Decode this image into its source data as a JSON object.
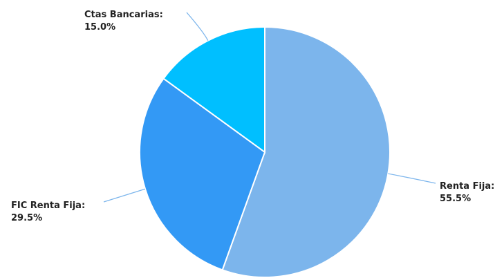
{
  "chart_data": {
    "type": "pie",
    "start_angle_deg": 0,
    "direction": "clockwise",
    "slices": [
      {
        "name": "Renta Fija",
        "label": "Renta Fija:",
        "value_label": "55.5%",
        "value": 55.5,
        "color": "#7cb5ec"
      },
      {
        "name": "FIC Renta Fija",
        "label": "FIC Renta Fija:",
        "value_label": "29.5%",
        "value": 29.5,
        "color": "#3399f5"
      },
      {
        "name": "Ctas Bancarias",
        "label": "Ctas Bancarias:",
        "value_label": "15.0%",
        "value": 15.0,
        "color": "#00bfff"
      }
    ],
    "connector_color": "#7cb5ec",
    "slice_border_color": "#ffffff"
  }
}
